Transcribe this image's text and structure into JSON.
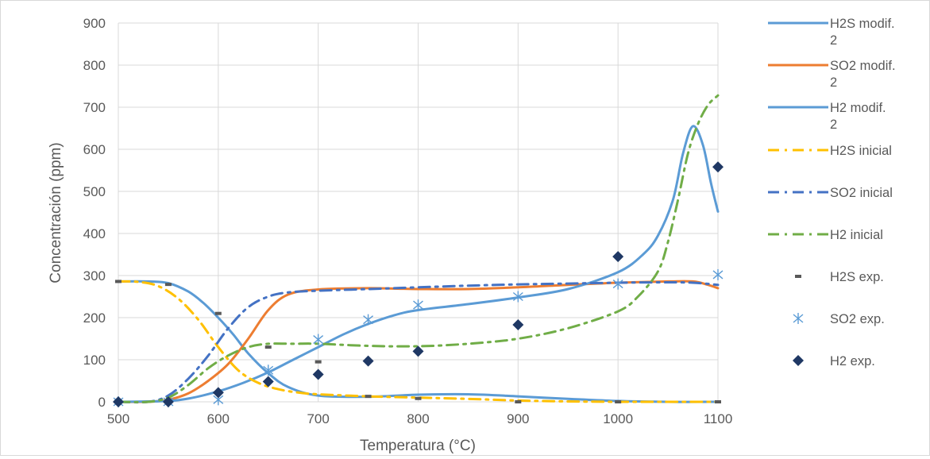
{
  "chart_data": {
    "type": "line",
    "title": "",
    "xlabel": "Temperatura (°C)",
    "ylabel": "Concentración (ppm)",
    "xlim": [
      500,
      1100
    ],
    "ylim": [
      0,
      900
    ],
    "xticks": [
      500,
      600,
      700,
      800,
      900,
      1000,
      1100
    ],
    "yticks": [
      0,
      100,
      200,
      300,
      400,
      500,
      600,
      700,
      800,
      900
    ],
    "grid": true,
    "legend_position": "right",
    "series": [
      {
        "name": "H2S modif. 2",
        "kind": "line",
        "style": "solid",
        "color": "#5b9bd5",
        "x": [
          500,
          530,
          550,
          570,
          585,
          600,
          615,
          630,
          650,
          670,
          700,
          750,
          800,
          850,
          900,
          950,
          1000,
          1050,
          1100
        ],
        "y": [
          286,
          286,
          282,
          262,
          235,
          200,
          160,
          115,
          68,
          35,
          15,
          12,
          17,
          18,
          13,
          7,
          2,
          0,
          0
        ]
      },
      {
        "name": "SO2 modif. 2",
        "kind": "line",
        "style": "solid",
        "color": "#ed7d31",
        "x": [
          500,
          530,
          550,
          570,
          590,
          610,
          630,
          650,
          670,
          700,
          750,
          800,
          850,
          900,
          950,
          1000,
          1050,
          1075,
          1090,
          1100
        ],
        "y": [
          0,
          0,
          5,
          20,
          50,
          90,
          150,
          218,
          255,
          267,
          270,
          268,
          268,
          272,
          278,
          283,
          286,
          286,
          278,
          270
        ]
      },
      {
        "name": "H2 modif. 2",
        "kind": "line",
        "style": "solid",
        "color": "#5b9bd5",
        "x": [
          500,
          550,
          575,
          600,
          625,
          650,
          675,
          700,
          725,
          750,
          775,
          800,
          850,
          900,
          950,
          1000,
          1025,
          1040,
          1055,
          1065,
          1075,
          1085,
          1093,
          1100
        ],
        "y": [
          0,
          2,
          10,
          25,
          45,
          70,
          100,
          130,
          160,
          185,
          205,
          218,
          232,
          248,
          268,
          308,
          350,
          395,
          480,
          590,
          655,
          610,
          520,
          452
        ]
      },
      {
        "name": "H2S inicial",
        "kind": "line",
        "style": "dashdot",
        "color": "#ffc000",
        "x": [
          500,
          520,
          540,
          560,
          580,
          600,
          620,
          640,
          660,
          680,
          700,
          750,
          800,
          850,
          900,
          950,
          1000,
          1050,
          1100
        ],
        "y": [
          286,
          285,
          275,
          245,
          195,
          130,
          75,
          45,
          30,
          22,
          18,
          13,
          10,
          7,
          3,
          1,
          0,
          0,
          0
        ]
      },
      {
        "name": "SO2 inicial",
        "kind": "line",
        "style": "dashdot",
        "color": "#4472c4",
        "x": [
          500,
          530,
          550,
          570,
          590,
          610,
          630,
          650,
          670,
          700,
          750,
          800,
          850,
          900,
          950,
          1000,
          1050,
          1075,
          1100
        ],
        "y": [
          0,
          0,
          15,
          55,
          110,
          175,
          225,
          250,
          260,
          264,
          268,
          272,
          276,
          279,
          281,
          283,
          284,
          283,
          278
        ]
      },
      {
        "name": "H2 inicial",
        "kind": "line",
        "style": "dashdot",
        "color": "#70ad47",
        "x": [
          500,
          530,
          550,
          570,
          590,
          610,
          630,
          650,
          675,
          700,
          750,
          800,
          850,
          900,
          950,
          1000,
          1020,
          1040,
          1050,
          1060,
          1070,
          1080,
          1090,
          1100
        ],
        "y": [
          0,
          0,
          10,
          40,
          80,
          110,
          130,
          138,
          138,
          138,
          133,
          132,
          138,
          150,
          175,
          215,
          250,
          310,
          380,
          480,
          590,
          660,
          705,
          728
        ]
      },
      {
        "name": "H2S exp.",
        "kind": "scatter",
        "marker": "dash",
        "color": "#595959",
        "x": [
          500,
          550,
          600,
          650,
          700,
          750,
          800,
          900,
          1000,
          1100
        ],
        "y": [
          286,
          279,
          210,
          130,
          95,
          13,
          8,
          0,
          0,
          0
        ]
      },
      {
        "name": "SO2 exp.",
        "kind": "scatter",
        "marker": "asterisk",
        "color": "#5b9bd5",
        "x": [
          500,
          550,
          600,
          650,
          700,
          750,
          800,
          900,
          1000,
          1100
        ],
        "y": [
          0,
          0,
          5,
          75,
          148,
          195,
          230,
          250,
          280,
          302
        ]
      },
      {
        "name": "H2 exp.",
        "kind": "scatter",
        "marker": "diamond",
        "color": "#1f3864",
        "x": [
          500,
          550,
          600,
          650,
          700,
          750,
          800,
          900,
          1000,
          1100
        ],
        "y": [
          0,
          0,
          22,
          48,
          65,
          97,
          120,
          183,
          345,
          558
        ]
      }
    ]
  },
  "legend": [
    {
      "lines": [
        "H2S modif.",
        "2"
      ]
    },
    {
      "lines": [
        "SO2 modif.",
        "2"
      ]
    },
    {
      "lines": [
        "H2 modif.",
        "2"
      ]
    },
    {
      "lines": [
        "H2S inicial"
      ]
    },
    {
      "lines": [
        "SO2 inicial"
      ]
    },
    {
      "lines": [
        "H2 inicial"
      ]
    },
    {
      "lines": [
        "H2S exp."
      ]
    },
    {
      "lines": [
        "SO2 exp."
      ]
    },
    {
      "lines": [
        "H2 exp."
      ]
    }
  ]
}
